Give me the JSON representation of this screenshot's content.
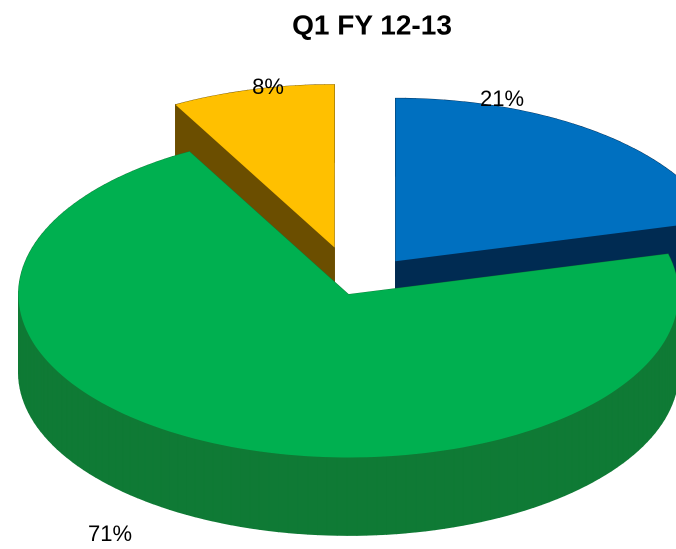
{
  "chart_data": {
    "type": "pie",
    "title": "Q1 FY 12-13",
    "values": [
      21,
      71,
      8
    ],
    "value_labels": [
      "21%",
      "71%",
      "8%"
    ],
    "colors": [
      "#0070c0",
      "#00b050",
      "#ffc000"
    ],
    "side_colors": [
      "#002b52",
      "#0f7a35",
      "#6b4e00"
    ]
  }
}
